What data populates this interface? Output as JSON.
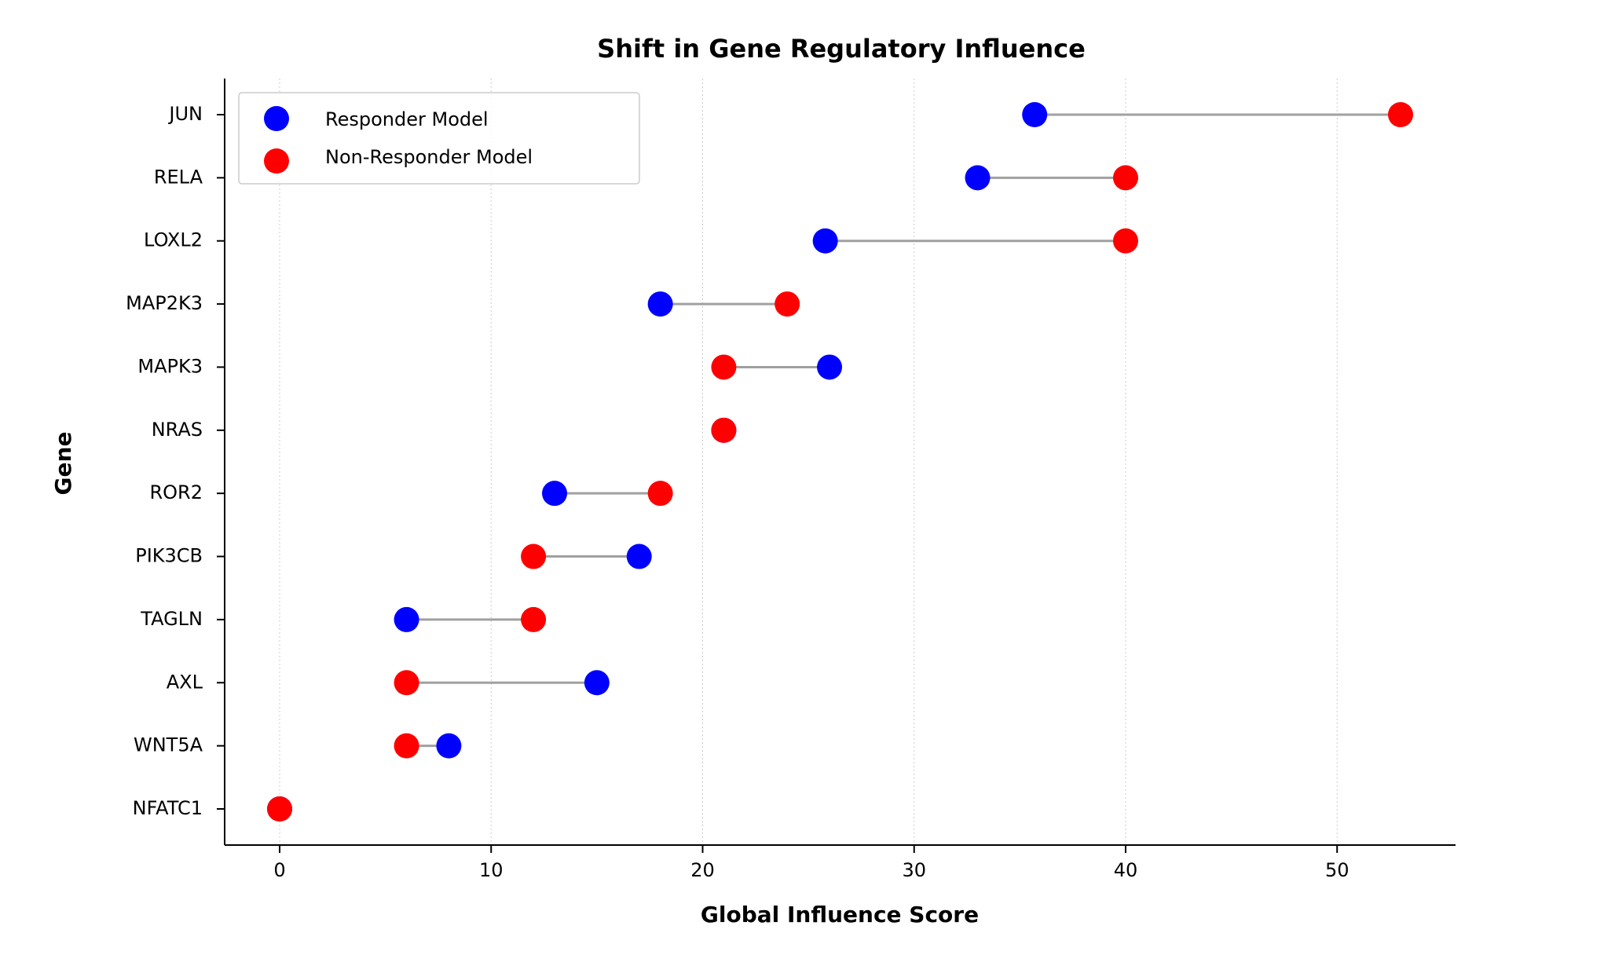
{
  "chart_data": {
    "type": "dumbbell",
    "title": "Shift in Gene Regulatory Influence",
    "xlabel": "Global Influence Score",
    "ylabel": "Gene",
    "xlim": [
      -2.6,
      55.6
    ],
    "xticks": [
      0,
      10,
      20,
      30,
      40,
      50
    ],
    "grid": "x-dotted",
    "legend_position": "top-left",
    "categories": [
      "JUN",
      "RELA",
      "LOXL2",
      "MAP2K3",
      "MAPK3",
      "NRAS",
      "ROR2",
      "PIK3CB",
      "TAGLN",
      "AXL",
      "WNT5A",
      "NFATC1"
    ],
    "series": [
      {
        "name": "Responder Model",
        "color": "#0000ff",
        "values": [
          35.7,
          33,
          25.8,
          18,
          26,
          21,
          13,
          17,
          6,
          15,
          8,
          0
        ]
      },
      {
        "name": "Non-Responder Model",
        "color": "#ff0000",
        "values": [
          53,
          40,
          40,
          24,
          21,
          21,
          18,
          12,
          12,
          6,
          6,
          0
        ]
      }
    ],
    "connector_color": "#a0a0a0"
  }
}
